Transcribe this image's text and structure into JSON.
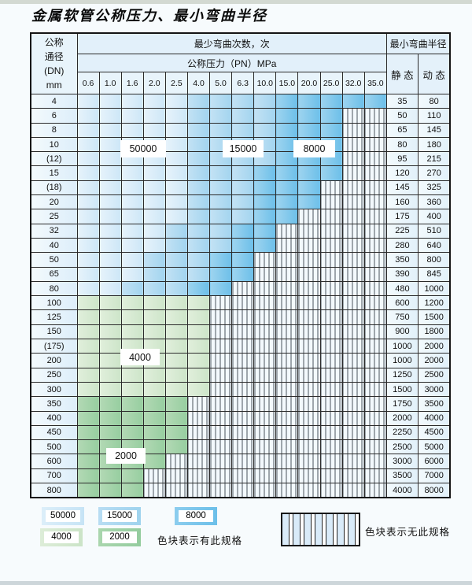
{
  "title": "金属软管公称压力、最小弯曲半径",
  "table": {
    "corner_header": [
      "公称",
      "通径",
      "(DN)",
      "mm"
    ],
    "bend_cycles_header": "最少弯曲次数，次",
    "pressure_header": "公称压力（PN）MPa",
    "radius_header": "最小弯曲半径",
    "static_header": "静 态",
    "dynamic_header": "动 态",
    "pressures": [
      "0.6",
      "1.0",
      "1.6",
      "2.0",
      "2.5",
      "4.0",
      "5.0",
      "6.3",
      "10.0",
      "15.0",
      "20.0",
      "25.0",
      "32.0",
      "35.0"
    ],
    "cell_legend": "l=50000次, m=15000次, d=8000次, g=4000次, h=2000次, s=无此规格",
    "rows": [
      {
        "dn": "4",
        "cells": "lllllmmmmddddd",
        "static": "35",
        "dynamic": "80"
      },
      {
        "dn": "6",
        "cells": "lllllmmmmdddss",
        "static": "50",
        "dynamic": "110"
      },
      {
        "dn": "8",
        "cells": "lllllmmmmdddss",
        "static": "65",
        "dynamic": "145"
      },
      {
        "dn": "10",
        "cells": "lllllmmmmdddss",
        "static": "80",
        "dynamic": "180"
      },
      {
        "dn": "(12)",
        "cells": "lllllmmmmdddss",
        "static": "95",
        "dynamic": "215"
      },
      {
        "dn": "15",
        "cells": "lllllmmmddddss",
        "static": "120",
        "dynamic": "270"
      },
      {
        "dn": "(18)",
        "cells": "lllllmmmdddsss",
        "static": "145",
        "dynamic": "325"
      },
      {
        "dn": "20",
        "cells": "lllllmmmdddsss",
        "static": "160",
        "dynamic": "360"
      },
      {
        "dn": "25",
        "cells": "lllllmmmddssss",
        "static": "175",
        "dynamic": "400"
      },
      {
        "dn": "32",
        "cells": "llllmmmddsssss",
        "static": "225",
        "dynamic": "510"
      },
      {
        "dn": "40",
        "cells": "llllmmmddsssss",
        "static": "280",
        "dynamic": "640"
      },
      {
        "dn": "50",
        "cells": "lllmmmddssssss",
        "static": "350",
        "dynamic": "800"
      },
      {
        "dn": "65",
        "cells": "lllmmmddssssss",
        "static": "390",
        "dynamic": "845"
      },
      {
        "dn": "80",
        "cells": "llmmmddsssssss",
        "static": "480",
        "dynamic": "1000"
      },
      {
        "dn": "100",
        "cells": "ggggggssssssss",
        "static": "600",
        "dynamic": "1200"
      },
      {
        "dn": "125",
        "cells": "ggggggssssssss",
        "static": "750",
        "dynamic": "1500"
      },
      {
        "dn": "150",
        "cells": "ggggggssssssss",
        "static": "900",
        "dynamic": "1800"
      },
      {
        "dn": "(175)",
        "cells": "ggggggssssssss",
        "static": "1000",
        "dynamic": "2000"
      },
      {
        "dn": "200",
        "cells": "ggggggssssssss",
        "static": "1000",
        "dynamic": "2000"
      },
      {
        "dn": "250",
        "cells": "ggggggssssssss",
        "static": "1250",
        "dynamic": "2500"
      },
      {
        "dn": "300",
        "cells": "ggggggssssssss",
        "static": "1500",
        "dynamic": "3000"
      },
      {
        "dn": "350",
        "cells": "hhhhhsssssssss",
        "static": "1750",
        "dynamic": "3500"
      },
      {
        "dn": "400",
        "cells": "hhhhhsssssssss",
        "static": "2000",
        "dynamic": "4000"
      },
      {
        "dn": "450",
        "cells": "hhhhhsssssssss",
        "static": "2250",
        "dynamic": "4500"
      },
      {
        "dn": "500",
        "cells": "hhhhhsssssssss",
        "static": "2500",
        "dynamic": "5000"
      },
      {
        "dn": "600",
        "cells": "hhhhssssssssss",
        "static": "3000",
        "dynamic": "6000"
      },
      {
        "dn": "700",
        "cells": "hhhsssssssssss",
        "static": "3500",
        "dynamic": "7000"
      },
      {
        "dn": "800",
        "cells": "hhhsssssssssss",
        "static": "4000",
        "dynamic": "8000"
      }
    ]
  },
  "zone_labels": {
    "blue_50000": "50000",
    "blue_15000": "15000",
    "blue_8000": "8000",
    "green_4000": "4000",
    "green_2000": "2000"
  },
  "legend": {
    "items": [
      {
        "label": "50000",
        "zone": "blue-light"
      },
      {
        "label": "15000",
        "zone": "blue-medium"
      },
      {
        "label": "8000",
        "zone": "blue-dark"
      },
      {
        "label": "4000",
        "zone": "green-light"
      },
      {
        "label": "2000",
        "zone": "green-dark"
      }
    ],
    "present_note": "色块表示有此规格",
    "absent_note": "色块表示无此规格"
  },
  "colors": {
    "blue_light": "#cde7f7",
    "blue_medium": "#a2d4ef",
    "blue_dark": "#6cbfe9",
    "green_light": "#cde5c9",
    "green_dark": "#97cea0",
    "header_bg": "#e2f0fa",
    "grid_line": "#2b2b2b"
  }
}
